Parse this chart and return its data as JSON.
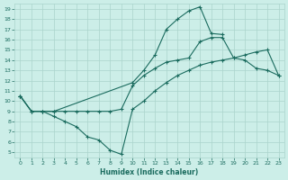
{
  "title": "",
  "xlabel": "Humidex (Indice chaleur)",
  "bg_color": "#cceee8",
  "line_color": "#1a6b5e",
  "grid_color": "#aad4cc",
  "xlim": [
    -0.5,
    23.5
  ],
  "ylim": [
    4.5,
    19.5
  ],
  "xticks": [
    0,
    1,
    2,
    3,
    4,
    5,
    6,
    7,
    8,
    9,
    10,
    11,
    12,
    13,
    14,
    15,
    16,
    17,
    18,
    19,
    20,
    21,
    22,
    23
  ],
  "yticks": [
    5,
    6,
    7,
    8,
    9,
    10,
    11,
    12,
    13,
    14,
    15,
    16,
    17,
    18,
    19
  ],
  "line1_x": [
    0,
    1,
    2,
    3,
    10,
    11,
    12,
    13,
    14,
    15,
    16,
    17,
    18
  ],
  "line1_y": [
    10.5,
    9.0,
    9.0,
    9.0,
    11.8,
    13.0,
    14.5,
    17.0,
    18.0,
    18.8,
    19.2,
    16.6,
    16.5
  ],
  "line2_x": [
    0,
    1,
    2,
    3,
    4,
    5,
    6,
    7,
    8,
    9,
    10,
    11,
    12,
    13,
    14,
    15,
    16,
    17,
    18,
    19,
    20,
    21,
    22,
    23
  ],
  "line2_y": [
    10.5,
    9.0,
    9.0,
    9.0,
    9.0,
    9.0,
    9.0,
    9.0,
    9.0,
    9.2,
    11.5,
    12.5,
    13.2,
    13.8,
    14.0,
    14.2,
    15.8,
    16.2,
    16.2,
    14.2,
    14.0,
    13.2,
    13.0,
    12.5
  ],
  "line3_x": [
    0,
    1,
    2,
    3,
    4,
    5,
    6,
    7,
    8,
    9,
    10,
    11,
    12,
    13,
    14,
    15,
    16,
    17,
    18,
    19,
    20,
    21,
    22,
    23
  ],
  "line3_y": [
    10.5,
    9.0,
    9.0,
    8.5,
    8.0,
    7.5,
    6.5,
    6.2,
    5.2,
    4.8,
    9.2,
    10.0,
    11.0,
    11.8,
    12.5,
    13.0,
    13.5,
    13.8,
    14.0,
    14.2,
    14.5,
    14.8,
    15.0,
    12.5
  ]
}
